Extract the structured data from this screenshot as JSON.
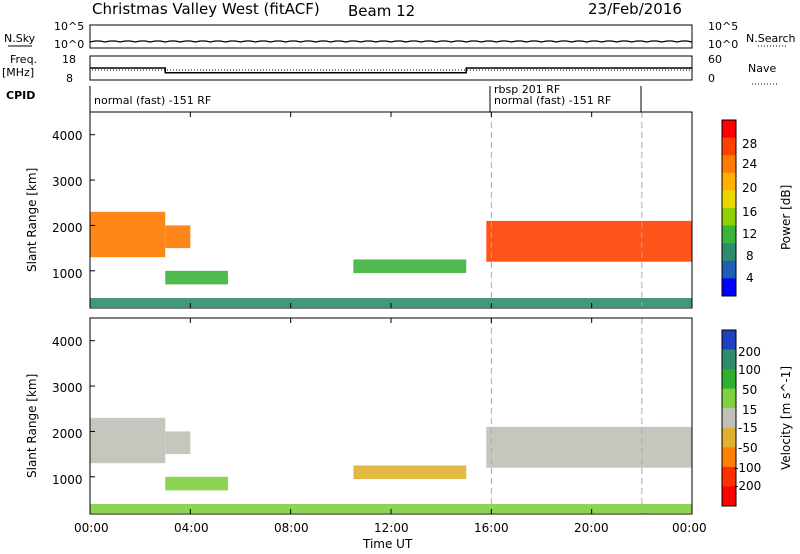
{
  "header": {
    "title": "Christmas Valley West (fitACF)",
    "beam": "Beam 12",
    "date": "23/Feb/2016"
  },
  "panels": {
    "nsky_label": "N.Sky",
    "nsky_ticks": [
      "10^5",
      "10^0"
    ],
    "nsearch_label": "N.Search",
    "nsearch_ticks": [
      "10^5",
      "10^0"
    ],
    "freq_label_1": "Freq.",
    "freq_label_2": "[MHz]",
    "freq_ticks": [
      "18",
      "8"
    ],
    "nave_label": "Nave",
    "nave_ticks": [
      "60",
      "0"
    ],
    "cpid_label": "CPID",
    "cpid_segments": [
      {
        "label": "normal (fast) -151 RF",
        "start": 0,
        "end": 16
      },
      {
        "label": "rbsp 201 RF",
        "start": 16,
        "end": 22
      },
      {
        "label": "normal (fast) -151 RF",
        "start": 16,
        "end": 22
      }
    ]
  },
  "axes": {
    "ylabel": "Slant Range [km]",
    "yticks": [
      "4000",
      "3000",
      "2000",
      "1000"
    ],
    "xlabel": "Time UT",
    "xticks": [
      "00:00",
      "04:00",
      "08:00",
      "12:00",
      "16:00",
      "20:00",
      "00:00"
    ]
  },
  "colorbars": {
    "power": {
      "label": "Power [dB]",
      "ticks": [
        "28",
        "24",
        "20",
        "16",
        "12",
        "8",
        "4"
      ],
      "colors": [
        "#ff0000",
        "#ff4000",
        "#ff7a00",
        "#ffb000",
        "#e8d800",
        "#8ed000",
        "#3cb43c",
        "#2e8c6e",
        "#1c5fb4",
        "#0000ff"
      ]
    },
    "velocity": {
      "label": "Velocity [m s^-1]",
      "ticks": [
        "200",
        "100",
        "50",
        "15",
        "-15",
        "-50",
        "-100",
        "-200"
      ],
      "colors": [
        "#2040c0",
        "#2e8c6e",
        "#30b030",
        "#80d040",
        "#c0c0b8",
        "#e0b030",
        "#ff8000",
        "#ff3000",
        "#ff0000"
      ]
    }
  },
  "chart_data": {
    "type": "heatmap",
    "title": "Christmas Valley West (fitACF)",
    "xlabel": "Time UT",
    "ylabel": "Slant Range [km]",
    "xlim": [
      0,
      24
    ],
    "ylim": [
      180,
      4500
    ],
    "xticks": [
      0,
      4,
      8,
      12,
      16,
      20,
      24
    ],
    "yticks": [
      1000,
      2000,
      3000,
      4000
    ],
    "frequency_mhz": [
      {
        "start": 0,
        "end": 3,
        "value": 13
      },
      {
        "start": 3,
        "end": 15,
        "value": 11
      },
      {
        "start": 15,
        "end": 24,
        "value": 13
      }
    ],
    "echo_regions": [
      {
        "start": 0,
        "end": 3,
        "range_low": 1300,
        "range_high": 2300,
        "power_db": 26,
        "velocity": 0
      },
      {
        "start": 3,
        "end": 4,
        "range_low": 1500,
        "range_high": 2000,
        "power_db": 24,
        "velocity": 0
      },
      {
        "start": 3,
        "end": 5.5,
        "range_low": 700,
        "range_high": 1000,
        "power_db": 10,
        "velocity": 40
      },
      {
        "start": 10.5,
        "end": 15,
        "range_low": 950,
        "range_high": 1250,
        "power_db": 10,
        "velocity": -40
      },
      {
        "start": 15.8,
        "end": 24,
        "range_low": 1200,
        "range_high": 2100,
        "power_db": 28,
        "velocity": 0
      },
      {
        "start": 0,
        "end": 24,
        "range_low": 200,
        "range_high": 400,
        "power_db": 8,
        "velocity": 30
      }
    ]
  }
}
